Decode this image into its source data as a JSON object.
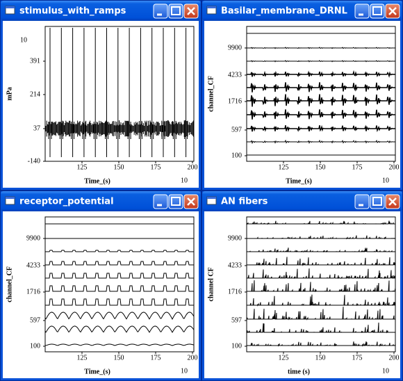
{
  "windows": [
    {
      "title": "stimulus_with_ramps",
      "y_label": "mPa",
      "y_exponent": "10",
      "y_ticks": [
        "391",
        "214",
        "37",
        "-140"
      ],
      "x_ticks": [
        "125",
        "150",
        "175",
        "200"
      ],
      "x_label": "Time_(s)",
      "x_exponent": "10"
    },
    {
      "title": "Basilar_membrane_DRNL",
      "y_label": "channel_CF",
      "y_ticks": [
        "9900",
        "4233",
        "1716",
        "597",
        "100"
      ],
      "x_ticks": [
        "125",
        "150",
        "175",
        "200"
      ],
      "x_label": "Time_(s)",
      "x_exponent": "10"
    },
    {
      "title": "receptor_potential",
      "y_label": "channel_CF",
      "y_ticks": [
        "9900",
        "4233",
        "1716",
        "597",
        "100"
      ],
      "x_ticks": [
        "125",
        "150",
        "175",
        "200"
      ],
      "x_label": "Time_(s)",
      "x_exponent": "10"
    },
    {
      "title": "AN fibers",
      "y_label": "channel CF",
      "y_ticks": [
        "9900",
        "4233",
        "1716",
        "597",
        "100"
      ],
      "x_ticks": [
        "125",
        "150",
        "175",
        "200"
      ],
      "x_label": "time (s)",
      "x_exponent": "10"
    }
  ]
}
